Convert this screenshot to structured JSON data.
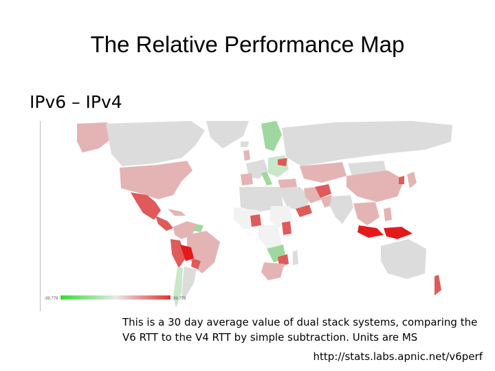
{
  "slide": {
    "title": "The Relative Performance Map",
    "subtitle": "IPv6 – IPv4",
    "caption": "This is a 30 day average value of dual stack systems, comparing the V6 RTT to the V4 RTT by simple subtraction. Units are MS",
    "url": "http://stats.labs.apnic.net/v6perf"
  },
  "legend": {
    "min_label": "-39.779",
    "max_label": "39.779",
    "colors": {
      "low": "#33dd33",
      "mid": "#e8e8e8",
      "high": "#e53333"
    }
  },
  "map_colors": {
    "ocean": "#ffffff",
    "no_data": "#dcdcdc",
    "light_red": "#e4b4b4",
    "red": "#e05a5a",
    "strong_red": "#e41a1a",
    "green": "#9fd89f",
    "light_green": "#c8e8c8",
    "white": "#f2f2f2"
  }
}
